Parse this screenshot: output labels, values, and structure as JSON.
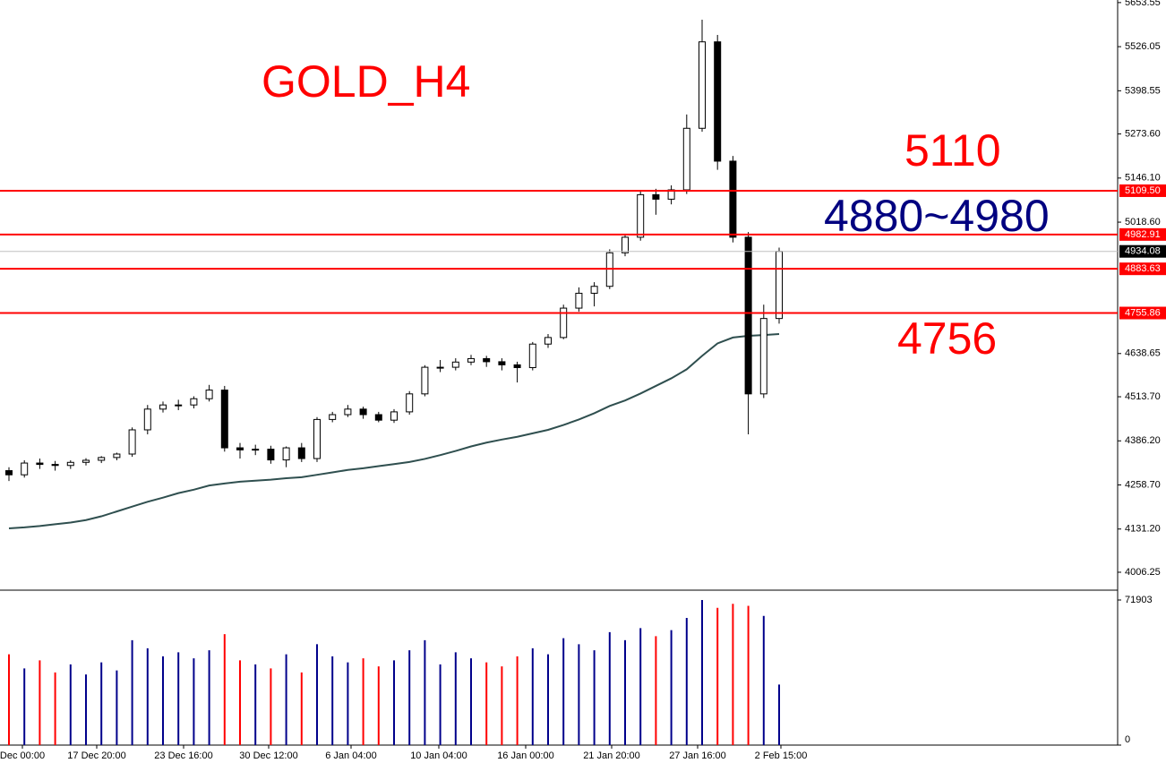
{
  "chart_data": {
    "type": "candlestick",
    "title": "GOLD_H4",
    "open": [
      4300,
      4288,
      4322,
      4318,
      4315,
      4324,
      4330,
      4338,
      4348,
      4418,
      4478,
      4490,
      4490,
      4508,
      4533,
      4366,
      4360,
      4362,
      4331,
      4366,
      4335,
      4448,
      4462,
      4478,
      4462,
      4446,
      4470,
      4522,
      4599,
      4599,
      4614,
      4624,
      4615,
      4606,
      4598,
      4666,
      4685,
      4770,
      4813,
      4833,
      4930,
      4975,
      5098,
      5085,
      5112,
      5290,
      5540,
      5195,
      4975,
      4522,
      4740
    ],
    "high": [
      4310,
      4330,
      4335,
      4328,
      4330,
      4336,
      4342,
      4352,
      4425,
      4490,
      4500,
      4505,
      4515,
      4548,
      4545,
      4380,
      4375,
      4372,
      4370,
      4380,
      4455,
      4470,
      4490,
      4485,
      4470,
      4478,
      4530,
      4605,
      4620,
      4625,
      4635,
      4632,
      4625,
      4615,
      4672,
      4695,
      4780,
      4830,
      4845,
      4940,
      4985,
      5110,
      5115,
      5125,
      5330,
      5604,
      5560,
      5210,
      4990,
      4780,
      4945
    ],
    "low": [
      4270,
      4280,
      4305,
      4300,
      4305,
      4315,
      4322,
      4330,
      4340,
      4405,
      4468,
      4475,
      4480,
      4500,
      4355,
      4335,
      4345,
      4320,
      4310,
      4325,
      4325,
      4440,
      4455,
      4450,
      4440,
      4438,
      4462,
      4515,
      4585,
      4590,
      4605,
      4600,
      4590,
      4555,
      4590,
      4655,
      4680,
      4760,
      4775,
      4825,
      4920,
      4965,
      5040,
      5070,
      5100,
      5280,
      5170,
      4960,
      4405,
      4510,
      4725
    ],
    "close": [
      4288,
      4322,
      4318,
      4315,
      4324,
      4330,
      4338,
      4348,
      4418,
      4478,
      4490,
      4490,
      4508,
      4533,
      4366,
      4360,
      4362,
      4331,
      4366,
      4335,
      4448,
      4462,
      4478,
      4462,
      4446,
      4470,
      4522,
      4599,
      4599,
      4614,
      4624,
      4615,
      4606,
      4598,
      4666,
      4685,
      4770,
      4813,
      4833,
      4930,
      4975,
      5098,
      5085,
      5112,
      5290,
      5540,
      5195,
      4975,
      4522,
      4740,
      4934
    ],
    "ma": {
      "color": "#2f4f4f",
      "values": [
        4133,
        4136,
        4140,
        4145,
        4150,
        4157,
        4168,
        4182,
        4196,
        4210,
        4222,
        4235,
        4245,
        4257,
        4263,
        4268,
        4271,
        4274,
        4278,
        4281,
        4288,
        4295,
        4302,
        4307,
        4313,
        4319,
        4325,
        4334,
        4345,
        4357,
        4370,
        4381,
        4390,
        4398,
        4408,
        4418,
        4432,
        4448,
        4466,
        4487,
        4503,
        4523,
        4545,
        4567,
        4593,
        4632,
        4668,
        4685,
        4690,
        4692,
        4695
      ]
    },
    "ylim": [
      3957,
      5661
    ],
    "yticks": [
      {
        "value": 5653.55,
        "label": "5653.55"
      },
      {
        "value": 5526.05,
        "label": "5526.05"
      },
      {
        "value": 5398.55,
        "label": "5398.55"
      },
      {
        "value": 5273.6,
        "label": "5273.60"
      },
      {
        "value": 5146.1,
        "label": "5146.10"
      },
      {
        "value": 5018.6,
        "label": "5018.60"
      },
      {
        "value": 4638.65,
        "label": "4638.65"
      },
      {
        "value": 4513.7,
        "label": "4513.70"
      },
      {
        "value": 4386.2,
        "label": "4386.20"
      },
      {
        "value": 4258.7,
        "label": "4258.70"
      },
      {
        "value": 4131.2,
        "label": "4131.20"
      },
      {
        "value": 4006.25,
        "label": "4006.25"
      }
    ],
    "price_lines": [
      {
        "value": 5109.5,
        "label": "5109.50"
      },
      {
        "value": 4982.91,
        "label": "4982.91"
      },
      {
        "value": 4883.63,
        "label": "4883.63"
      },
      {
        "value": 4755.86,
        "label": "4755.86"
      }
    ],
    "line_color": "#ff0000",
    "current_price": {
      "value": 4934.08,
      "label": "4934.08"
    },
    "annotations": [
      {
        "text": "5110",
        "color": "#ff0000"
      },
      {
        "text": "4880~4980",
        "color": "#000080"
      },
      {
        "text": "4756",
        "color": "#ff0000"
      }
    ],
    "x_labels": [
      "Dec 00:00",
      "17 Dec 20:00",
      "23 Dec 16:00",
      "30 Dec 12:00",
      "6 Jan 04:00",
      "10 Jan 04:00",
      "16 Jan 00:00",
      "21 Jan 20:00",
      "27 Jan 16:00",
      "2 Feb 15:00"
    ],
    "volume": {
      "up_color": "#00008b",
      "down_color": "#ff0000",
      "values": [
        45000,
        38000,
        42000,
        36000,
        40000,
        35000,
        41000,
        37000,
        52000,
        48000,
        44000,
        46000,
        43000,
        47000,
        55000,
        42000,
        40000,
        38000,
        45000,
        36000,
        50000,
        44000,
        41000,
        43000,
        39000,
        42000,
        47000,
        52000,
        40000,
        46000,
        43000,
        41000,
        39000,
        44000,
        48000,
        45000,
        53000,
        50000,
        47000,
        56000,
        52000,
        58000,
        54000,
        57000,
        63000,
        71903,
        68000,
        70000,
        69000,
        64000,
        30000
      ],
      "ylim": [
        0,
        76340
      ],
      "yticks": [
        0,
        71903
      ]
    }
  }
}
